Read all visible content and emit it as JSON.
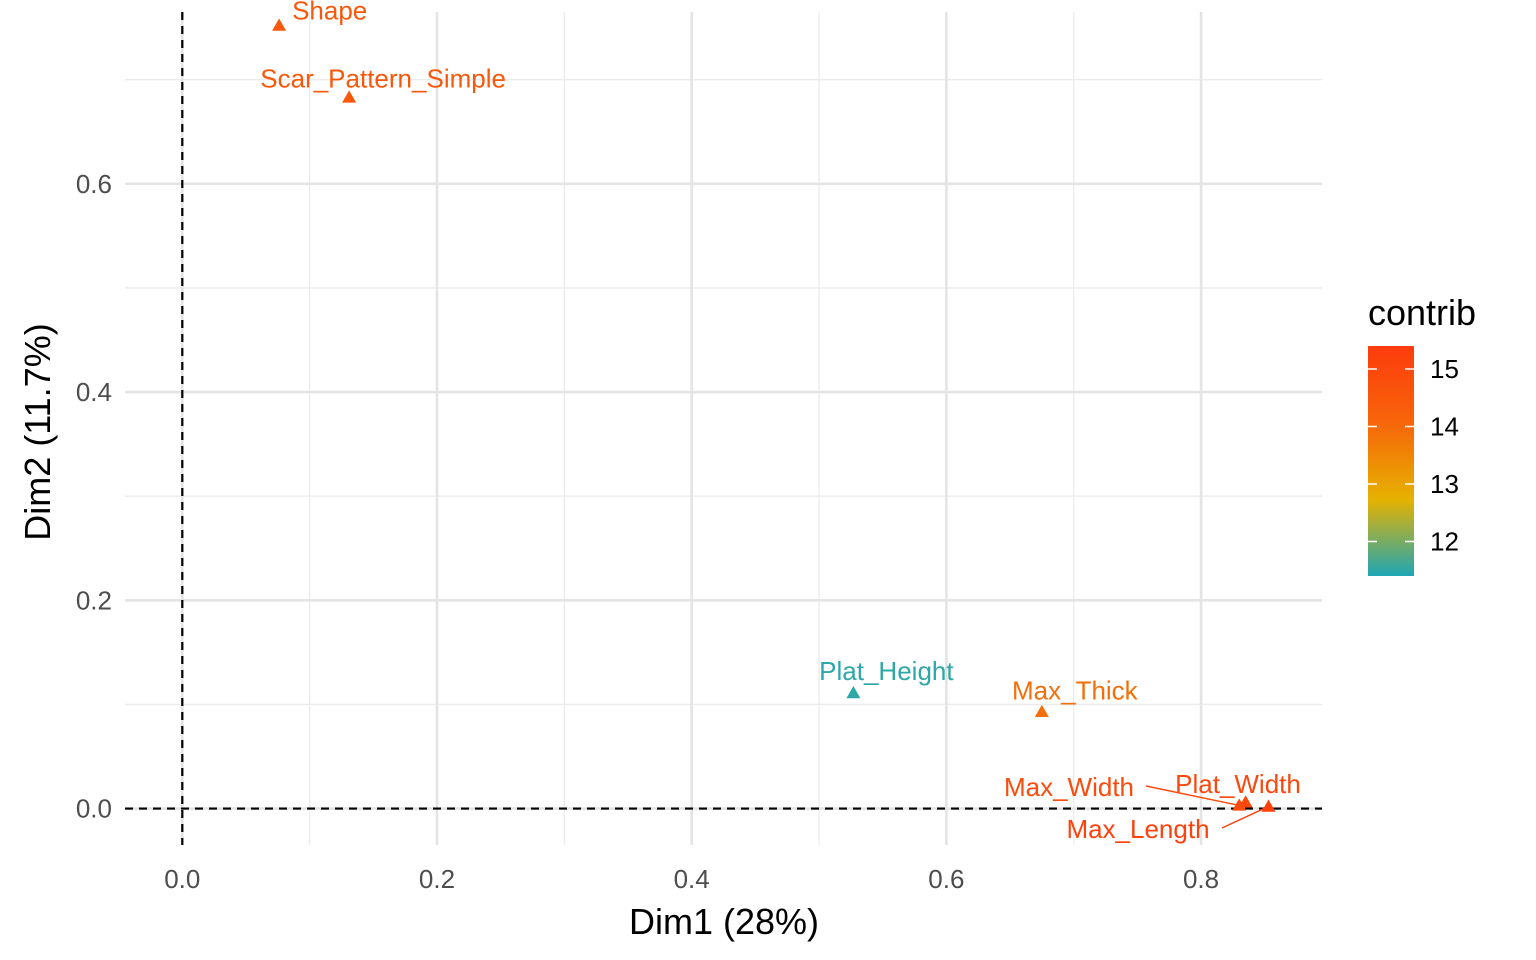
{
  "chart_data": {
    "type": "scatter",
    "title": "",
    "xlabel": "Dim1 (28%)",
    "ylabel": "Dim2 (11.7%)",
    "xlim": [
      -0.045,
      0.895
    ],
    "ylim": [
      -0.035,
      0.765
    ],
    "x_ticks": [
      0.0,
      0.2,
      0.4,
      0.6,
      0.8
    ],
    "x_tick_labels": [
      "0.0",
      "0.2",
      "0.4",
      "0.6",
      "0.8"
    ],
    "y_ticks": [
      0.0,
      0.2,
      0.4,
      0.6
    ],
    "y_tick_labels": [
      "0.0",
      "0.2",
      "0.4",
      "0.6"
    ],
    "x_minor_ticks": [
      0.1,
      0.3,
      0.5,
      0.7
    ],
    "y_minor_ticks": [
      0.1,
      0.3,
      0.5,
      0.7
    ],
    "grid": true,
    "reference_lines": {
      "x": 0.0,
      "y": 0.0,
      "style": "dashed"
    },
    "marker": "triangle",
    "points": [
      {
        "label": "Shape",
        "x": 0.076,
        "y": 0.752,
        "contrib": 14.5
      },
      {
        "label": "Scar_Pattern_Simple",
        "x": 0.131,
        "y": 0.683,
        "contrib": 14.5
      },
      {
        "label": "Plat_Height",
        "x": 0.527,
        "y": 0.111,
        "contrib": 11.5
      },
      {
        "label": "Max_Thick",
        "x": 0.675,
        "y": 0.093,
        "contrib": 13.9
      },
      {
        "label": "Max_Width",
        "x": 0.83,
        "y": 0.003,
        "contrib": 14.9
      },
      {
        "label": "Plat_Width",
        "x": 0.835,
        "y": 0.006,
        "contrib": 15.0
      },
      {
        "label": "Max_Length",
        "x": 0.853,
        "y": 0.002,
        "contrib": 15.2
      }
    ],
    "legend": {
      "title": "contrib",
      "position": "right",
      "range": [
        11.4,
        15.4
      ],
      "ticks": [
        12,
        13,
        14,
        15
      ],
      "tick_labels": [
        "12",
        "13",
        "14",
        "15"
      ],
      "colors": [
        "#1ea6b4",
        "#e6b200",
        "#f7650a",
        "#fe3c0e"
      ]
    }
  }
}
